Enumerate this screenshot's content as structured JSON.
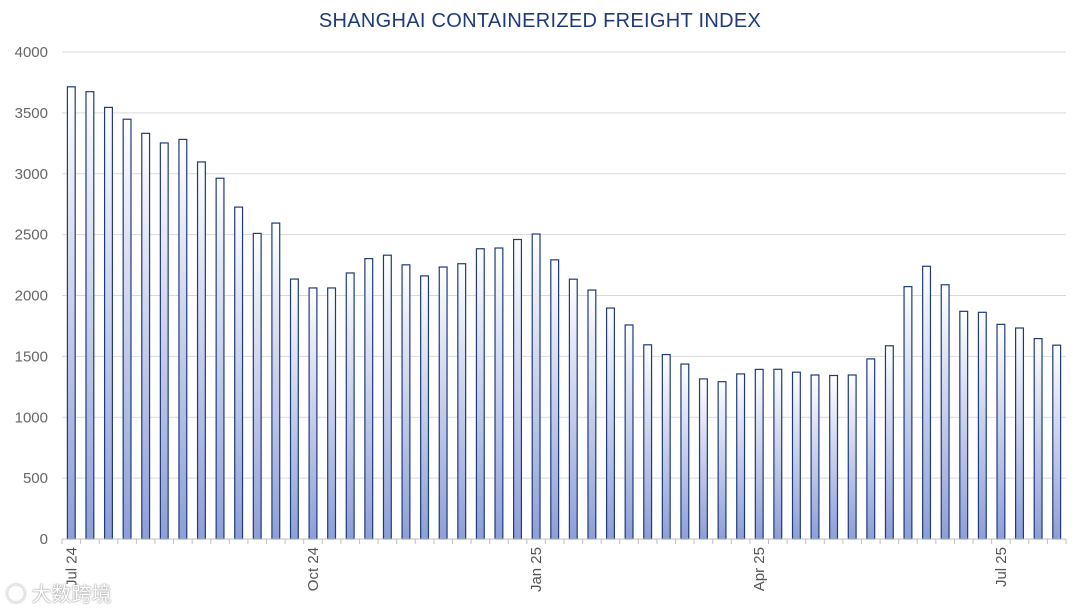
{
  "chart_data": {
    "type": "bar",
    "title": "SHANGHAI CONTAINERIZED FREIGHT INDEX",
    "xlabel": "",
    "ylabel": "",
    "ylim": [
      0,
      4000
    ],
    "yticks": [
      0,
      500,
      1000,
      1500,
      2000,
      2500,
      3000,
      3500,
      4000
    ],
    "grid": true,
    "legend": "none",
    "x_tick_labels": [
      {
        "label": "Jul 24",
        "index": 0
      },
      {
        "label": "Oct 24",
        "index": 13
      },
      {
        "label": "Jan 25",
        "index": 25
      },
      {
        "label": "Apr 25",
        "index": 37
      },
      {
        "label": "Jul 25",
        "index": 50
      }
    ],
    "series": [
      {
        "values": [
          3714,
          3674,
          3545,
          3448,
          3332,
          3253,
          3282,
          3097,
          2963,
          2726,
          2510,
          2595,
          2135,
          2062,
          2062,
          2185,
          2303,
          2331,
          2252,
          2161,
          2234,
          2261,
          2384,
          2390,
          2460,
          2505,
          2293,
          2134,
          2045,
          1897,
          1758,
          1595,
          1515,
          1437,
          1315,
          1292,
          1356,
          1393,
          1394,
          1370,
          1347,
          1343,
          1347,
          1479,
          1587,
          2073,
          2240,
          2088,
          1870,
          1862,
          1763,
          1733,
          1646,
          1592
        ]
      }
    ],
    "colors": {
      "bar_stroke": "#1f3a7a",
      "bar_fill_top": "#ffffff",
      "bar_fill_bottom": "#8d9fd8",
      "title": "#1f3a7a"
    }
  },
  "watermark": {
    "text": "大数跨境"
  }
}
